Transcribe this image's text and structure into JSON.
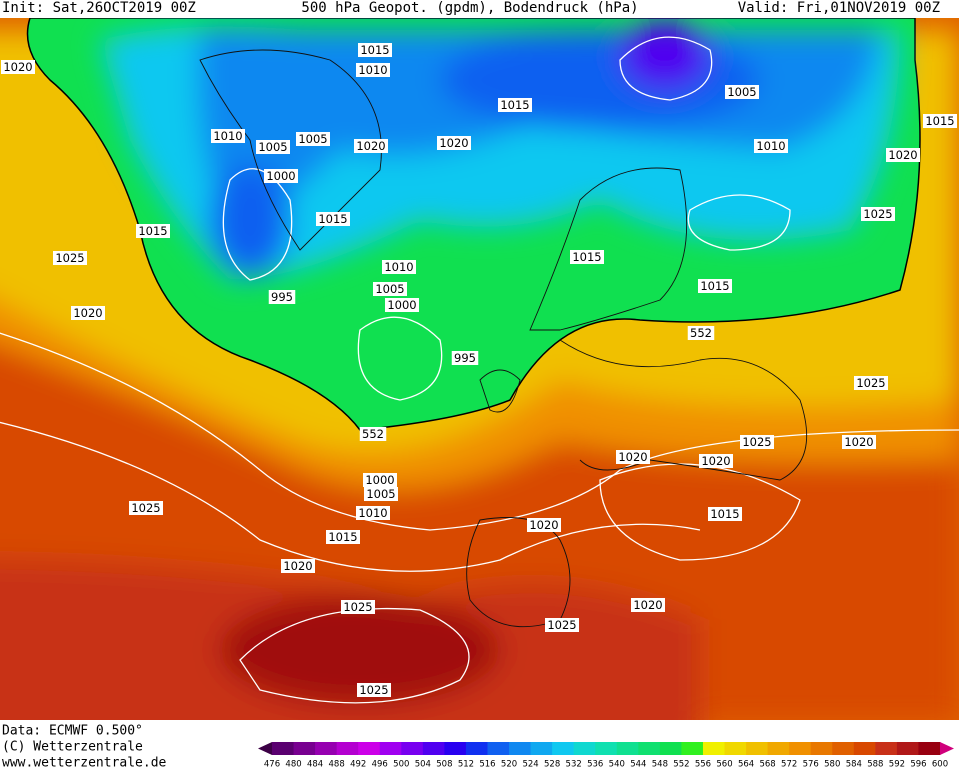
{
  "header": {
    "init": "Init: Sat,26OCT2019 00Z",
    "title": "500 hPa Geopot. (gpdm), Bodendruck (hPa)",
    "valid": "Valid: Fri,01NOV2019 00Z"
  },
  "map": {
    "isobar_labels": [
      "1015",
      "1010",
      "1020",
      "1015",
      "1005",
      "1015",
      "1010",
      "1005",
      "1005",
      "1020",
      "1020",
      "1010",
      "1020",
      "1000",
      "1015",
      "1025",
      "1015",
      "1025",
      "1015",
      "1010",
      "1015",
      "1005",
      "995",
      "1000",
      "1020",
      "552",
      "995",
      "1025",
      "552",
      "1025",
      "1020",
      "1020",
      "1020",
      "1000",
      "1005",
      "1025",
      "1010",
      "1015",
      "1020",
      "1015",
      "1020",
      "1020",
      "1025",
      "1025",
      "1025"
    ]
  },
  "footer": {
    "data": "Data: ECMWF  0.500°",
    "copyright": "(C) Wetterzentrale",
    "url": "www.wetterzentrale.de"
  },
  "colorbar": {
    "values": [
      476,
      480,
      484,
      488,
      492,
      496,
      500,
      504,
      508,
      512,
      516,
      520,
      524,
      528,
      532,
      536,
      540,
      544,
      548,
      552,
      556,
      560,
      564,
      568,
      572,
      576,
      580,
      584,
      588,
      592,
      596,
      600
    ],
    "colors": [
      "#3c0046",
      "#5a0070",
      "#780090",
      "#9600b0",
      "#b400d0",
      "#cc00e8",
      "#a000f0",
      "#7800f0",
      "#5000f0",
      "#2800f0",
      "#1030f0",
      "#1060f0",
      "#1088f0",
      "#10a8f0",
      "#10c8f0",
      "#10d8d0",
      "#10e0b0",
      "#10e090",
      "#10e070",
      "#10e050",
      "#30f020",
      "#f0f000",
      "#f0d800",
      "#f0c000",
      "#f0a800",
      "#f09000",
      "#e87800",
      "#e06000",
      "#d84800",
      "#c83018",
      "#b01818",
      "#980010",
      "#d0007c"
    ]
  }
}
